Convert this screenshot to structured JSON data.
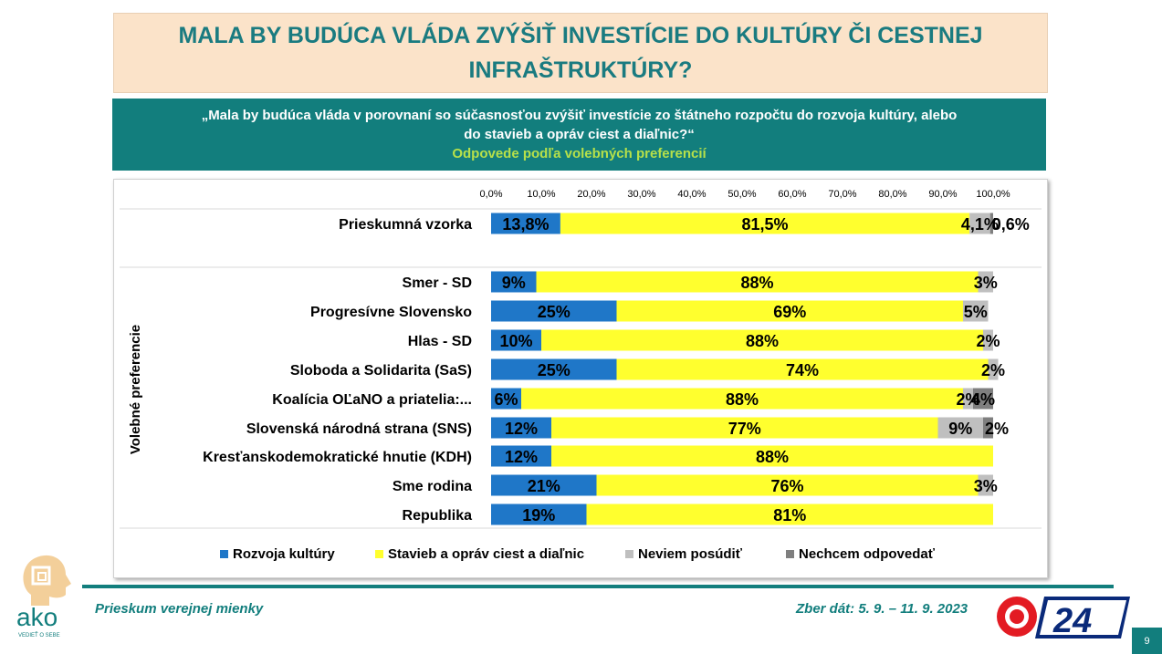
{
  "title": "MALA BY BUDÚCA VLÁDA ZVÝŠIŤ INVESTÍCIE DO KULTÚRY ČI CESTNEJ INFRAŠTRUKTÚRY?",
  "question": "„Mala by budúca vláda v porovnaní so súčasnosťou zvýšiť investície zo štátneho rozpočtu do rozvoja kultúry, alebo do stavieb a opráv ciest a diaľnic?“",
  "subtitle": "Odpovede podľa volebných preferencií",
  "footer": {
    "left": "Prieskum verejnej mienky",
    "right": "Zber dát: 5. 9. – 11. 9. 2023",
    "page": "9",
    "logo_text": "ako",
    "logo_tagline": "VEDIEŤ O SEBE",
    "tv_logo_text": "24"
  },
  "colors": {
    "teal": "#127e7d",
    "rozvoja": "#1f77c8",
    "stavieb": "#ffff2e",
    "neviem": "#bfbfbf",
    "nechcem": "#7f7f7f"
  },
  "chart_data": {
    "type": "bar",
    "orientation": "horizontal-stacked-100",
    "axis_label": "Volebné preferencie",
    "xlim": [
      0,
      100
    ],
    "x_ticks": [
      "0,0%",
      "10,0%",
      "20,0%",
      "30,0%",
      "40,0%",
      "50,0%",
      "60,0%",
      "70,0%",
      "80,0%",
      "90,0%",
      "100,0%"
    ],
    "legend_position": "bottom",
    "series": [
      {
        "name": "Rozvoja kultúry",
        "color": "#1f77c8"
      },
      {
        "name": "Stavieb a opráv ciest a diaľnic",
        "color": "#ffff2e"
      },
      {
        "name": "Neviem posúdiť",
        "color": "#bfbfbf"
      },
      {
        "name": "Nechcem odpovedať",
        "color": "#7f7f7f"
      }
    ],
    "categories": [
      {
        "label": "Prieskumná vzorka",
        "values": [
          13.8,
          81.5,
          4.1,
          0.6
        ],
        "labels": [
          "13,8%",
          "81,5%",
          "4,1%",
          "0,6%"
        ]
      },
      {
        "label": "Smer - SD",
        "values": [
          9,
          88,
          3,
          0
        ],
        "labels": [
          "9%",
          "88%",
          "3%",
          ""
        ]
      },
      {
        "label": "Progresívne Slovensko",
        "values": [
          25,
          69,
          5,
          0
        ],
        "labels": [
          "25%",
          "69%",
          "5%",
          ""
        ]
      },
      {
        "label": "Hlas - SD",
        "values": [
          10,
          88,
          2,
          0
        ],
        "labels": [
          "10%",
          "88%",
          "2%",
          ""
        ]
      },
      {
        "label": "Sloboda a Solidarita (SaS)",
        "values": [
          25,
          74,
          2,
          0
        ],
        "labels": [
          "25%",
          "74%",
          "2%",
          ""
        ]
      },
      {
        "label": "Koalícia OĽaNO a priatelia:...",
        "values": [
          6,
          88,
          2,
          4
        ],
        "labels": [
          "6%",
          "88%",
          "2%",
          "4%"
        ]
      },
      {
        "label": "Slovenská národná strana (SNS)",
        "values": [
          12,
          77,
          9,
          2
        ],
        "labels": [
          "12%",
          "77%",
          "9%",
          "2%"
        ]
      },
      {
        "label": "Kresťanskodemokratické hnutie (KDH)",
        "values": [
          12,
          88,
          0,
          0
        ],
        "labels": [
          "12%",
          "88%",
          "",
          ""
        ]
      },
      {
        "label": "Sme rodina",
        "values": [
          21,
          76,
          3,
          0
        ],
        "labels": [
          "21%",
          "76%",
          "3%",
          ""
        ]
      },
      {
        "label": "Republika",
        "values": [
          19,
          81,
          0,
          0
        ],
        "labels": [
          "19%",
          "81%",
          "",
          ""
        ]
      }
    ]
  }
}
